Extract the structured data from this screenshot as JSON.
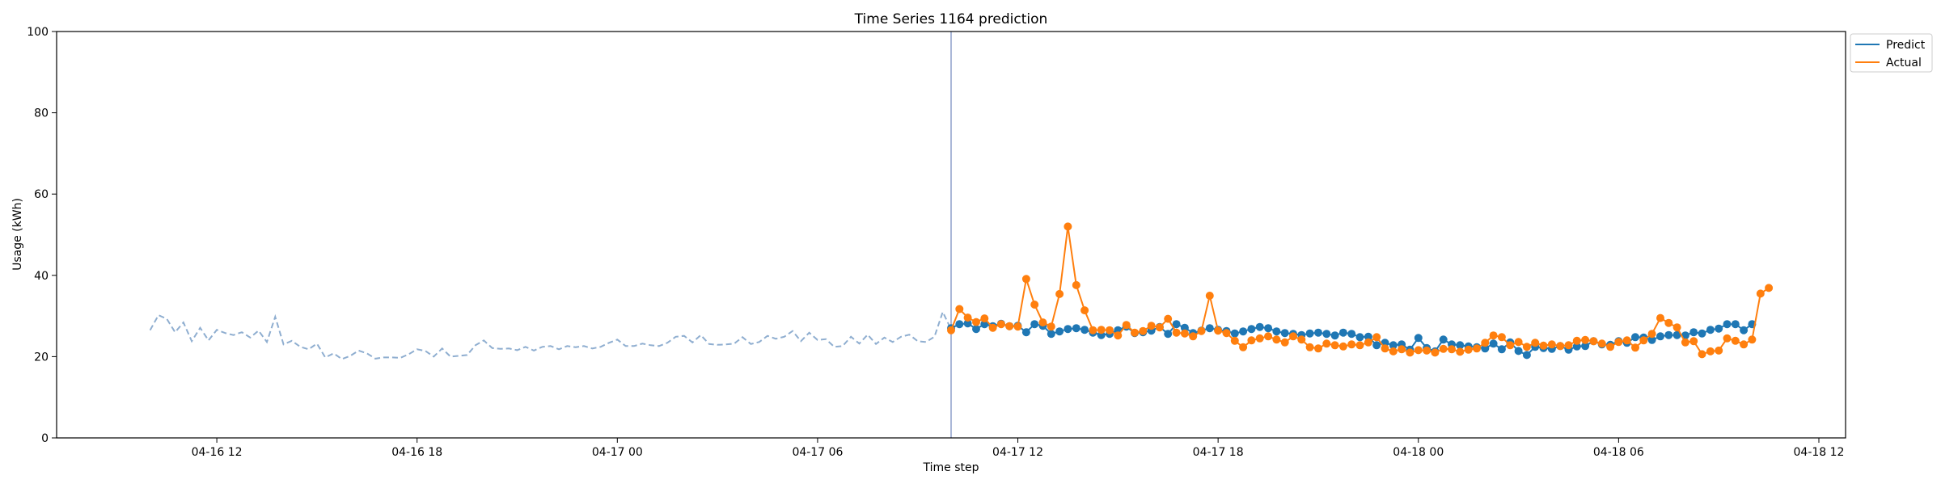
{
  "chart_data": {
    "type": "line",
    "title": "Time Series 1164 prediction",
    "xlabel": "Time step",
    "ylabel": "Usage (kWh)",
    "xlim": [
      "2024-04-16 07:12",
      "2024-04-18 12:48"
    ],
    "ylim": [
      0,
      100
    ],
    "grid": false,
    "legend_position": "upper right, outside plot",
    "x_tick_labels": [
      "04-16 12",
      "04-16 18",
      "04-17 00",
      "04-17 06",
      "04-17 12",
      "04-17 18",
      "04-18 00",
      "04-18 06",
      "04-18 12"
    ],
    "x_ticks": [
      "2024-04-16 12:00",
      "2024-04-16 18:00",
      "2024-04-17 00:00",
      "2024-04-17 06:00",
      "2024-04-17 12:00",
      "2024-04-17 18:00",
      "2024-04-18 00:00",
      "2024-04-18 06:00",
      "2024-04-18 12:00"
    ],
    "y_ticks": [
      0,
      20,
      40,
      60,
      80,
      100
    ],
    "forecast_start": "2024-04-17 10:00",
    "colors": {
      "predict": "#1f77b4",
      "actual": "#ff7f0e",
      "history": "#8faed0",
      "divider": "#8da0cb"
    },
    "history": {
      "start": "2024-04-16 10:00",
      "step_minutes": 15,
      "values": [
        26.5,
        30.2,
        29.3,
        26.0,
        28.4,
        23.8,
        27.1,
        24.0,
        26.6,
        25.8,
        25.3,
        26.0,
        24.7,
        26.4,
        23.6,
        29.8,
        23.0,
        23.9,
        22.4,
        21.8,
        23.2,
        19.8,
        20.8,
        19.4,
        20.2,
        21.5,
        20.8,
        19.5,
        19.8,
        19.8,
        19.7,
        20.6,
        21.8,
        21.4,
        20.0,
        22.0,
        20.0,
        20.2,
        20.4,
        22.8,
        24.0,
        22.1,
        21.9,
        22.0,
        21.6,
        22.4,
        21.5,
        22.4,
        22.6,
        21.8,
        22.6,
        22.3,
        22.6,
        22.0,
        22.4,
        23.4,
        24.2,
        22.6,
        22.6,
        23.2,
        22.8,
        22.6,
        23.4,
        24.9,
        25.1,
        23.5,
        25.3,
        23.1,
        22.9,
        23.0,
        23.2,
        24.8,
        23.1,
        23.6,
        25.1,
        24.4,
        24.9,
        26.3,
        23.8,
        25.9,
        24.1,
        24.3,
        22.4,
        22.6,
        24.9,
        23.2,
        25.4,
        23.1,
        24.7,
        23.6,
        24.9,
        25.4,
        23.8,
        23.6,
        24.9,
        31.0,
        26.7
      ]
    },
    "series": [
      {
        "name": "Predict",
        "start": "2024-04-17 10:00",
        "step_minutes": 15,
        "values": [
          27.0,
          28.0,
          28.2,
          26.8,
          28.0,
          27.5,
          28.1,
          27.5,
          27.6,
          26.0,
          28.0,
          27.6,
          25.6,
          26.2,
          26.8,
          27.0,
          26.6,
          25.9,
          25.3,
          25.6,
          26.5,
          27.4,
          25.8,
          26.0,
          26.4,
          27.3,
          25.6,
          28.0,
          27.1,
          25.8,
          26.4,
          27.0,
          26.6,
          26.3,
          25.7,
          26.2,
          26.8,
          27.3,
          27.0,
          26.2,
          25.8,
          25.6,
          25.3,
          25.7,
          25.9,
          25.6,
          25.2,
          25.9,
          25.6,
          24.8,
          24.9,
          22.8,
          23.4,
          22.8,
          23.0,
          21.7,
          24.6,
          22.1,
          21.3,
          24.2,
          23.0,
          22.8,
          22.5,
          22.3,
          22.0,
          23.2,
          21.8,
          23.5,
          21.4,
          20.4,
          22.4,
          22.1,
          21.9,
          22.6,
          21.7,
          22.5,
          22.6,
          23.8,
          23.0,
          22.9,
          23.8,
          23.4,
          24.8,
          24.7,
          24.1,
          25.0,
          25.3,
          25.3,
          25.2,
          26.0,
          25.7,
          26.6,
          26.9,
          28.0,
          28.0,
          26.5,
          28.0
        ]
      },
      {
        "name": "Actual",
        "start": "2024-04-17 10:00",
        "step_minutes": 15,
        "values": [
          26.5,
          31.7,
          29.6,
          28.5,
          29.4,
          27.1,
          28.0,
          27.5,
          27.4,
          39.1,
          32.8,
          28.4,
          27.4,
          35.4,
          52.0,
          37.6,
          31.4,
          26.5,
          26.6,
          26.5,
          25.2,
          27.8,
          25.9,
          26.3,
          27.6,
          27.2,
          29.3,
          25.9,
          25.7,
          25.0,
          26.3,
          35.0,
          26.4,
          25.8,
          23.9,
          22.3,
          24.0,
          24.5,
          25.0,
          24.2,
          23.5,
          25.0,
          24.2,
          22.3,
          22.0,
          23.2,
          22.8,
          22.5,
          23.0,
          22.8,
          23.5,
          24.8,
          22.0,
          21.3,
          21.8,
          21.0,
          21.6,
          21.5,
          21.0,
          21.9,
          21.8,
          21.2,
          21.7,
          22.0,
          23.4,
          25.2,
          24.8,
          22.8,
          23.6,
          22.4,
          23.4,
          22.7,
          23.0,
          22.6,
          22.8,
          23.9,
          24.1,
          23.8,
          23.2,
          22.4,
          23.6,
          24.0,
          22.2,
          24.0,
          25.6,
          29.5,
          28.3,
          27.2,
          23.5,
          23.8,
          20.6,
          21.3,
          21.5,
          24.5,
          23.9,
          23.0,
          24.2,
          35.5,
          36.9
        ]
      }
    ]
  }
}
